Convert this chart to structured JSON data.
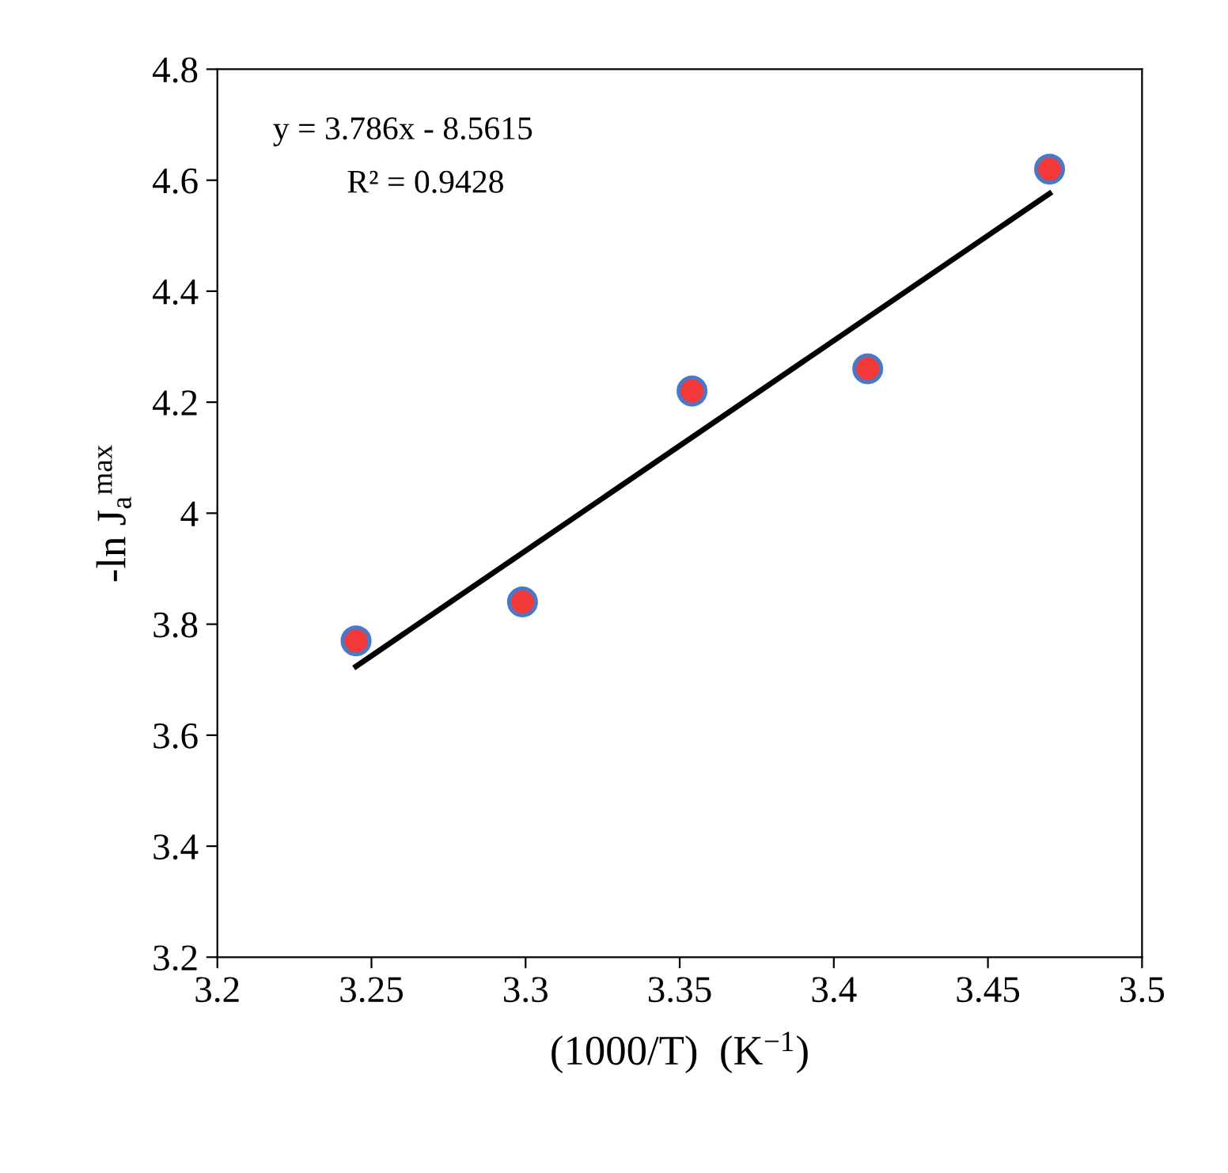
{
  "chart_data": {
    "type": "scatter",
    "xlabel": "(1000/T)  (K$^{−1}$)",
    "ylabel": "-ln J$_{a}$$^{max}$",
    "annotations": [
      "y = 3.786x - 8.5615",
      "R² = 0.9428"
    ],
    "series": [
      {
        "color": "#f23a3a",
        "x": [
          3.245,
          3.299,
          3.354,
          3.411,
          3.47
        ],
        "values": [
          3.77,
          3.84,
          4.22,
          4.26,
          4.62
        ],
        "marker": "circle"
      },
      {
        "type": "line",
        "color": "#000000",
        "x": [
          3.245,
          3.47
        ],
        "values": [
          3.724,
          4.576
        ],
        "marker": "none",
        "line_style": "solid"
      }
    ],
    "xlim": [
      3.2,
      3.5
    ],
    "xticks": [
      3.2,
      3.25,
      3.3,
      3.35,
      3.4,
      3.45,
      3.5
    ],
    "ylim": [
      3.2,
      4.8
    ],
    "yticks": [
      3.2,
      3.4,
      3.6,
      3.8,
      4,
      4.2,
      4.4,
      4.6,
      4.8
    ],
    "grid": false,
    "legend": false
  }
}
